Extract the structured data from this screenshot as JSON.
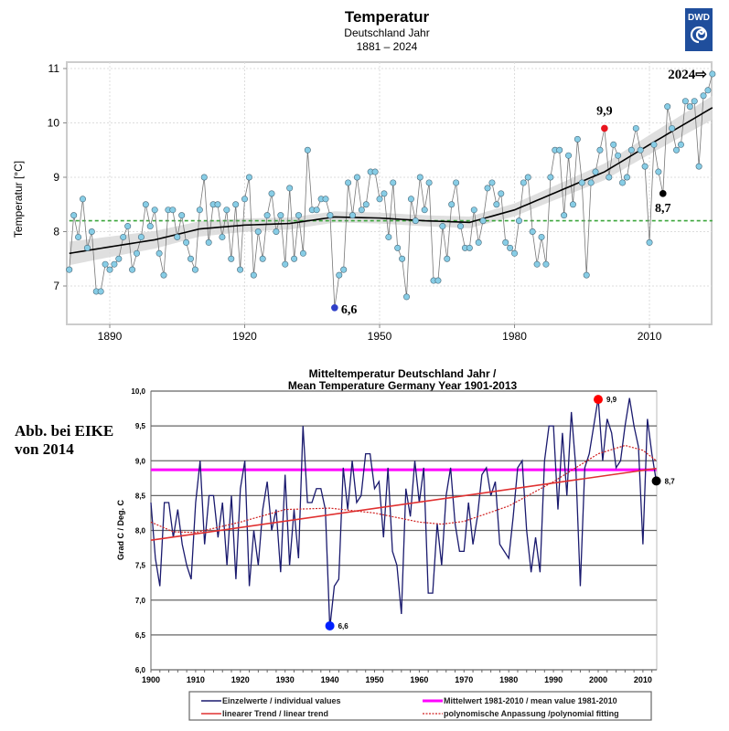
{
  "logo": {
    "text": "DWD",
    "color": "#1f4e9c"
  },
  "note": {
    "line1": "Abb. bei EIKE",
    "line2": "von 2014"
  },
  "chart_data": [
    {
      "type": "line",
      "title": "Temperatur",
      "subtitle1": "Deutschland Jahr",
      "subtitle2": "1881 – 2024",
      "ylabel": "Temperatur [°C]",
      "xlabel": "",
      "xlim": [
        1881,
        2024
      ],
      "ylim": [
        6.5,
        11.1
      ],
      "xticks": [
        1890,
        1920,
        1950,
        1980,
        2010
      ],
      "yticks": [
        7,
        8,
        9,
        10,
        11
      ],
      "grid": true,
      "x_start": 1881,
      "values": [
        7.3,
        8.3,
        7.9,
        8.6,
        7.7,
        8.0,
        6.9,
        6.9,
        7.4,
        7.3,
        7.4,
        7.5,
        7.9,
        8.1,
        7.3,
        7.6,
        7.9,
        8.5,
        8.1,
        8.4,
        7.6,
        7.2,
        8.4,
        8.4,
        7.9,
        8.3,
        7.8,
        7.5,
        7.3,
        8.4,
        9.0,
        7.8,
        8.5,
        8.5,
        7.9,
        8.4,
        7.5,
        8.5,
        7.3,
        8.6,
        9.0,
        7.2,
        8.0,
        7.5,
        8.3,
        8.7,
        8.0,
        8.3,
        7.4,
        8.8,
        7.5,
        8.3,
        7.6,
        9.5,
        8.4,
        8.4,
        8.6,
        8.6,
        8.3,
        6.6,
        7.2,
        7.3,
        8.9,
        8.3,
        9.0,
        8.4,
        8.5,
        9.1,
        9.1,
        8.6,
        8.7,
        7.9,
        8.9,
        7.7,
        7.5,
        6.8,
        8.6,
        8.2,
        9.0,
        8.4,
        8.9,
        7.1,
        7.1,
        8.1,
        7.5,
        8.5,
        8.9,
        8.1,
        7.7,
        7.7,
        8.4,
        7.8,
        8.2,
        8.8,
        8.9,
        8.5,
        8.7,
        7.8,
        7.7,
        7.6,
        8.2,
        8.9,
        9.0,
        8.0,
        7.4,
        7.9,
        7.4,
        9.0,
        9.5,
        9.5,
        8.3,
        9.4,
        8.5,
        9.7,
        8.9,
        7.2,
        8.9,
        9.1,
        9.5,
        9.9,
        9.0,
        9.6,
        9.4,
        8.9,
        9.0,
        9.5,
        9.9,
        9.5,
        9.2,
        7.8,
        9.6,
        9.1,
        8.7,
        10.3,
        9.9,
        9.5,
        9.6,
        10.4,
        10.3,
        10.4,
        9.2,
        10.5,
        10.6,
        10.9
      ],
      "smooth": {
        "x": [
          1881,
          1890,
          1900,
          1910,
          1920,
          1930,
          1940,
          1950,
          1960,
          1970,
          1980,
          1990,
          2000,
          2010,
          2024
        ],
        "y": [
          7.6,
          7.72,
          7.85,
          8.05,
          8.12,
          8.15,
          8.27,
          8.25,
          8.2,
          8.17,
          8.4,
          8.75,
          9.1,
          9.6,
          10.28
        ]
      },
      "reference_line": 8.2,
      "colors": {
        "points": "#87cde6",
        "line": "#777777",
        "smooth": "#000000",
        "band": "#d9d9d9",
        "reference": "#3aa53a"
      },
      "annotations": [
        {
          "x": 2000,
          "y": 9.9,
          "label": "9,9",
          "color": "#e8141e"
        },
        {
          "x": 2013,
          "y": 8.7,
          "label": "8,7",
          "color": "#000000"
        },
        {
          "x": 1940,
          "y": 6.6,
          "label": "6,6",
          "color": "#3040c8"
        },
        {
          "x": 2024,
          "y": 10.9,
          "label": "2024⇨",
          "color": "#000000"
        }
      ]
    },
    {
      "type": "line",
      "title": "Mitteltemperatur Deutschland Jahr /",
      "subtitle": "Mean Temperature Germany Year 1901-2013",
      "ylabel": "Grad C / Deg. C",
      "xlim": [
        1900,
        2013
      ],
      "ylim": [
        6.0,
        10.0
      ],
      "xticks": [
        "1900",
        "1910",
        "1920",
        "1930",
        "1940",
        "1950",
        "1960",
        "1970",
        "1980",
        "1990",
        "2000",
        "2010"
      ],
      "yticks": [
        "6,0",
        "6,5",
        "7,0",
        "7,5",
        "8,0",
        "8,5",
        "9,0",
        "9,5",
        "10,0"
      ],
      "grid": true,
      "x_start": 1900,
      "values": [
        8.4,
        7.6,
        7.2,
        8.4,
        8.4,
        7.9,
        8.3,
        7.8,
        7.5,
        7.3,
        8.4,
        9.0,
        7.8,
        8.5,
        8.5,
        7.9,
        8.4,
        7.5,
        8.5,
        7.3,
        8.6,
        9.0,
        7.2,
        8.0,
        7.5,
        8.3,
        8.7,
        8.0,
        8.3,
        7.4,
        8.8,
        7.5,
        8.3,
        7.6,
        9.5,
        8.4,
        8.4,
        8.6,
        8.6,
        8.3,
        6.6,
        7.2,
        7.3,
        8.9,
        8.3,
        9.0,
        8.4,
        8.5,
        9.1,
        9.1,
        8.6,
        8.7,
        7.9,
        8.9,
        7.7,
        7.5,
        6.8,
        8.6,
        8.2,
        9.0,
        8.4,
        8.9,
        7.1,
        7.1,
        8.1,
        7.5,
        8.5,
        8.9,
        8.1,
        7.7,
        7.7,
        8.4,
        7.8,
        8.2,
        8.8,
        8.9,
        8.5,
        8.7,
        7.8,
        7.7,
        7.6,
        8.2,
        8.9,
        9.0,
        8.0,
        7.4,
        7.9,
        7.4,
        9.0,
        9.5,
        9.5,
        8.3,
        9.4,
        8.5,
        9.7,
        8.9,
        7.2,
        8.9,
        9.1,
        9.5,
        9.9,
        9.0,
        9.6,
        9.4,
        8.9,
        9.0,
        9.5,
        9.9,
        9.5,
        9.2,
        7.8,
        9.6,
        9.1,
        8.7
      ],
      "mean_1981_2010": 8.87,
      "linear_trend": {
        "x": [
          1900,
          2013
        ],
        "y": [
          7.86,
          8.89
        ]
      },
      "polynomial": {
        "x": [
          1900,
          1905,
          1910,
          1920,
          1930,
          1940,
          1950,
          1960,
          1965,
          1970,
          1980,
          1990,
          2000,
          2006,
          2010,
          2013
        ],
        "y": [
          8.12,
          7.98,
          7.97,
          8.12,
          8.3,
          8.32,
          8.25,
          8.12,
          8.09,
          8.13,
          8.35,
          8.7,
          9.1,
          9.22,
          9.15,
          9.0
        ]
      },
      "colors": {
        "values": "#1a1a6e",
        "mean": "#ff00ff",
        "trend": "#e03030",
        "poly": "#d02020"
      },
      "legend": {
        "placement": "bottom",
        "items": [
          "Einzelwerte / individual values",
          "Mittelwert 1981-2010 / mean value 1981-2010",
          "linearer Trend / linear trend",
          "polynomische Anpassung /polynomial fitting"
        ]
      },
      "annotations": [
        {
          "x": 2000,
          "y": 9.88,
          "label": "9,9",
          "color": "#ff0000"
        },
        {
          "x": 2013,
          "y": 8.71,
          "label": "8,7",
          "color": "#000000"
        },
        {
          "x": 1940,
          "y": 6.63,
          "label": "6,6",
          "color": "#0020ff"
        }
      ]
    }
  ]
}
